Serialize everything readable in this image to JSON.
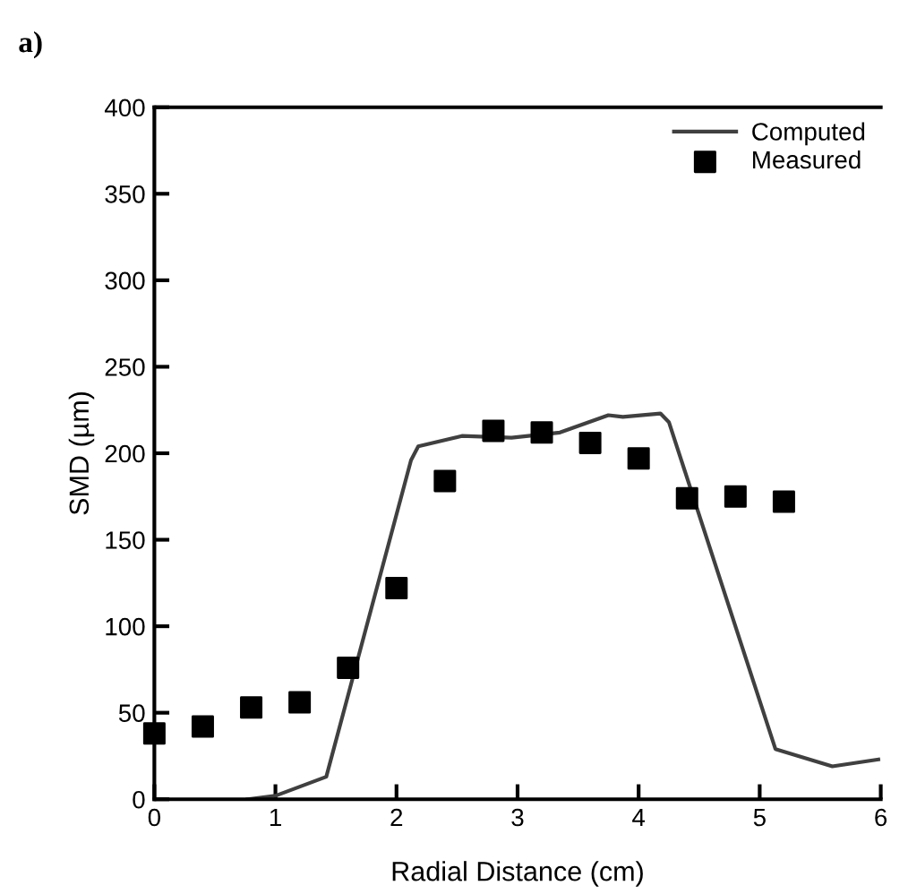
{
  "chart_data": {
    "type": "line",
    "xlabel": "Radial Distance (cm)",
    "ylabel": "SMD (µm)",
    "annotations": [
      "a)"
    ],
    "xlim": [
      0,
      6
    ],
    "xticks": [
      0,
      1,
      2,
      3,
      4,
      5,
      6
    ],
    "ylim": [
      0,
      400
    ],
    "yticks": [
      0,
      50,
      100,
      150,
      200,
      250,
      300,
      350,
      400
    ],
    "grid": false,
    "legend": "top right",
    "series": [
      {
        "name": "Computed",
        "color": "#404040",
        "marker": "none",
        "line_style": "solid",
        "x": [
          0.77,
          1.0,
          1.42,
          2.12,
          2.18,
          2.54,
          2.95,
          3.35,
          3.75,
          3.87,
          4.18,
          4.25,
          5.13,
          5.6,
          5.98
        ],
        "values": [
          0,
          2,
          13,
          196,
          204,
          210,
          209,
          212,
          222,
          221,
          223,
          218,
          29,
          19,
          23
        ]
      },
      {
        "name": "Measured",
        "type": "scatter",
        "color": "#000000",
        "marker": "square",
        "x": [
          0,
          0.4,
          0.8,
          1.2,
          1.6,
          2.0,
          2.4,
          2.8,
          3.2,
          3.6,
          4.0,
          4.4,
          4.8,
          5.2
        ],
        "values": [
          38,
          42,
          53,
          56,
          76,
          122,
          184,
          213,
          212,
          206,
          197,
          174,
          175,
          172
        ]
      }
    ]
  }
}
